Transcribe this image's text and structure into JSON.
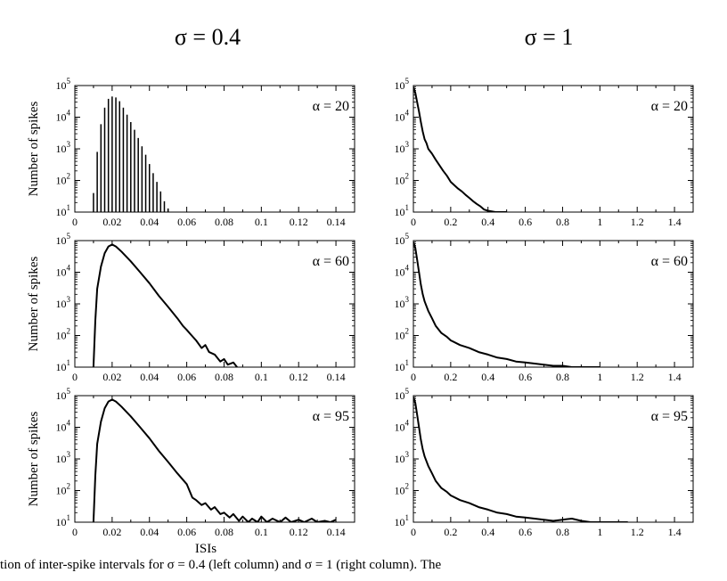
{
  "columns": [
    {
      "title": "σ = 0.4",
      "xlim": [
        0,
        0.15
      ],
      "xticks": [
        "0",
        "0.02",
        "0.04",
        "0.06",
        "0.08",
        "0.1",
        "0.12",
        "0.14"
      ],
      "xtick_values": [
        0,
        0.02,
        0.04,
        0.06,
        0.08,
        0.1,
        0.12,
        0.14
      ]
    },
    {
      "title": "σ = 1",
      "xlim": [
        0,
        1.5
      ],
      "xticks": [
        "0",
        "0.2",
        "0.4",
        "0.6",
        "0.8",
        "1",
        "1.2",
        "1.4"
      ],
      "xtick_values": [
        0,
        0.2,
        0.4,
        0.6,
        0.8,
        1,
        1.2,
        1.4
      ]
    }
  ],
  "ylabel": "Number of spikes",
  "xlabel": "ISIs",
  "yticks": [
    {
      "base": "10",
      "exp": "1",
      "value": 10
    },
    {
      "base": "10",
      "exp": "2",
      "value": 100
    },
    {
      "base": "10",
      "exp": "3",
      "value": 1000
    },
    {
      "base": "10",
      "exp": "4",
      "value": 10000
    },
    {
      "base": "10",
      "exp": "5",
      "value": 100000
    }
  ],
  "caption": "tion of inter-spike intervals for σ = 0.4 (left column) and σ = 1 (right column). The",
  "chart_data": [
    {
      "type": "bar",
      "column": 0,
      "row": 0,
      "annotation": "α = 20",
      "yscale": "log",
      "ylim": [
        10,
        100000
      ],
      "xlim": [
        0,
        0.15
      ],
      "x": [
        0.01,
        0.012,
        0.014,
        0.016,
        0.018,
        0.02,
        0.022,
        0.024,
        0.026,
        0.028,
        0.03,
        0.032,
        0.034,
        0.036,
        0.038,
        0.04,
        0.042,
        0.044,
        0.046,
        0.048,
        0.05,
        0.052
      ],
      "values": [
        40,
        800,
        6000,
        20000,
        38000,
        45000,
        42000,
        32000,
        20000,
        12000,
        7000,
        4000,
        2200,
        1200,
        650,
        330,
        170,
        90,
        45,
        22,
        13,
        10
      ]
    },
    {
      "type": "line",
      "column": 0,
      "row": 1,
      "annotation": "α = 60",
      "yscale": "log",
      "ylim": [
        10,
        100000
      ],
      "xlim": [
        0,
        0.15
      ],
      "x": [
        0.01,
        0.011,
        0.012,
        0.014,
        0.016,
        0.018,
        0.02,
        0.022,
        0.025,
        0.03,
        0.035,
        0.04,
        0.045,
        0.05,
        0.055,
        0.058,
        0.06,
        0.062,
        0.065,
        0.068,
        0.07,
        0.072,
        0.075,
        0.078,
        0.08,
        0.082,
        0.085,
        0.087
      ],
      "values": [
        10,
        300,
        3000,
        15000,
        40000,
        65000,
        75000,
        65000,
        45000,
        22000,
        10000,
        4500,
        1800,
        800,
        350,
        200,
        150,
        110,
        70,
        40,
        50,
        30,
        25,
        15,
        18,
        12,
        14,
        10
      ]
    },
    {
      "type": "line",
      "column": 0,
      "row": 2,
      "annotation": "α = 95",
      "yscale": "log",
      "ylim": [
        10,
        100000
      ],
      "xlim": [
        0,
        0.15
      ],
      "x": [
        0.01,
        0.011,
        0.012,
        0.014,
        0.016,
        0.018,
        0.02,
        0.022,
        0.025,
        0.03,
        0.035,
        0.04,
        0.045,
        0.05,
        0.055,
        0.06,
        0.063,
        0.065,
        0.068,
        0.07,
        0.073,
        0.075,
        0.078,
        0.08,
        0.083,
        0.085,
        0.088,
        0.09,
        0.093,
        0.095,
        0.098,
        0.1,
        0.103,
        0.106,
        0.11,
        0.113,
        0.116,
        0.12,
        0.123,
        0.127,
        0.13,
        0.134,
        0.137,
        0.14
      ],
      "values": [
        10,
        300,
        3000,
        15000,
        40000,
        65000,
        75000,
        65000,
        45000,
        22000,
        10000,
        4500,
        1800,
        800,
        350,
        160,
        60,
        50,
        35,
        40,
        25,
        30,
        18,
        20,
        14,
        18,
        11,
        15,
        10,
        13,
        10,
        15,
        10,
        13,
        10,
        14,
        10,
        12,
        10,
        13,
        10,
        11,
        10,
        12
      ]
    },
    {
      "type": "line",
      "column": 1,
      "row": 0,
      "annotation": "α = 20",
      "yscale": "log",
      "ylim": [
        10,
        100000
      ],
      "xlim": [
        0,
        1.5
      ],
      "x": [
        0.0,
        0.01,
        0.02,
        0.03,
        0.04,
        0.05,
        0.06,
        0.07,
        0.08,
        0.1,
        0.12,
        0.14,
        0.16,
        0.18,
        0.2,
        0.22,
        0.24,
        0.26,
        0.28,
        0.3,
        0.32,
        0.34,
        0.36,
        0.38,
        0.4,
        0.44,
        0.5
      ],
      "values": [
        90000,
        60000,
        30000,
        15000,
        7000,
        3500,
        2000,
        1500,
        1000,
        700,
        450,
        300,
        200,
        140,
        90,
        70,
        55,
        45,
        35,
        28,
        22,
        18,
        15,
        12,
        11,
        10,
        10
      ]
    },
    {
      "type": "line",
      "column": 1,
      "row": 1,
      "annotation": "α = 60",
      "yscale": "log",
      "ylim": [
        10,
        100000
      ],
      "xlim": [
        0,
        1.5
      ],
      "x": [
        0.0,
        0.01,
        0.02,
        0.03,
        0.04,
        0.05,
        0.06,
        0.08,
        0.1,
        0.12,
        0.15,
        0.18,
        0.2,
        0.25,
        0.3,
        0.35,
        0.4,
        0.45,
        0.5,
        0.55,
        0.6,
        0.65,
        0.7,
        0.75,
        0.8,
        0.85,
        0.9,
        0.95,
        1.0
      ],
      "values": [
        90000,
        60000,
        25000,
        10000,
        4000,
        2000,
        1200,
        600,
        350,
        200,
        120,
        90,
        70,
        50,
        40,
        30,
        25,
        20,
        18,
        15,
        14,
        13,
        12,
        11,
        11,
        10,
        10,
        10,
        10
      ]
    },
    {
      "type": "line",
      "column": 1,
      "row": 2,
      "annotation": "α = 95",
      "yscale": "log",
      "ylim": [
        10,
        100000
      ],
      "xlim": [
        0,
        1.5
      ],
      "x": [
        0.0,
        0.01,
        0.02,
        0.03,
        0.04,
        0.05,
        0.06,
        0.08,
        0.1,
        0.12,
        0.15,
        0.18,
        0.2,
        0.25,
        0.3,
        0.35,
        0.4,
        0.45,
        0.5,
        0.55,
        0.6,
        0.65,
        0.7,
        0.75,
        0.8,
        0.85,
        0.9,
        0.95,
        1.0,
        1.05,
        1.1,
        1.15
      ],
      "values": [
        90000,
        60000,
        25000,
        10000,
        4000,
        2000,
        1200,
        600,
        350,
        200,
        120,
        90,
        70,
        50,
        40,
        30,
        25,
        20,
        18,
        15,
        14,
        13,
        12,
        11,
        12,
        13,
        11,
        10,
        10,
        10,
        10,
        10
      ]
    }
  ]
}
